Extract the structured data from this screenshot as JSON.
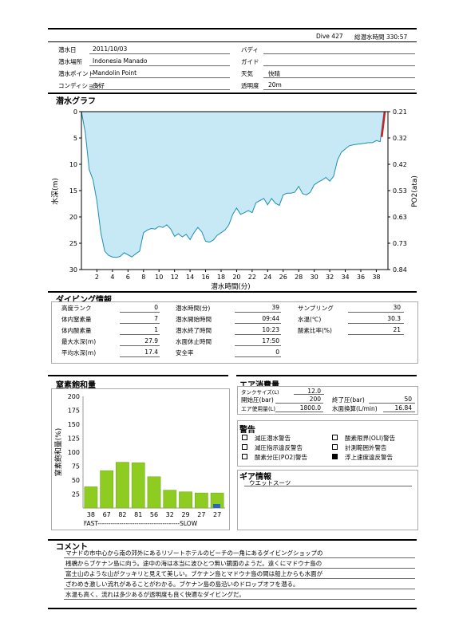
{
  "header": {
    "dive_label": "Dive 427",
    "total_time_label": "総潜水時間 330:57",
    "fields": [
      {
        "label": "潜水日",
        "value": "2011/10/03"
      },
      {
        "label": "潜水場所",
        "value": "Indonesia Manado"
      },
      {
        "label": "潜水ポイント",
        "value": "Mandolin Point"
      },
      {
        "label": "コンディション",
        "value": "良好"
      }
    ],
    "fields_right": [
      {
        "label": "バディ",
        "value": ""
      },
      {
        "label": "ガイド",
        "value": ""
      },
      {
        "label": "天気",
        "value": "快晴"
      },
      {
        "label": "透明度",
        "value": "20m"
      }
    ]
  },
  "dive_graph": {
    "title": "潜水グラフ",
    "ylabel": "水深(m)",
    "ylabel_right": "PO2(ata)",
    "xlabel": "潜水時間(分)",
    "left_ticks": [
      "0",
      "5",
      "10",
      "15",
      "20",
      "25",
      "30"
    ],
    "right_ticks": [
      "0.21",
      "0.32",
      "0.42",
      "0.53",
      "0.63",
      "0.73",
      "0.84"
    ],
    "x_ticks": [
      "2",
      "4",
      "6",
      "8",
      "10",
      "12",
      "14",
      "16",
      "18",
      "20",
      "22",
      "24",
      "26",
      "28",
      "30",
      "32",
      "34",
      "36",
      "38"
    ]
  },
  "dive_info": {
    "title": "ダイビング情報",
    "col1": [
      {
        "label": "高度ランク",
        "value": "0"
      },
      {
        "label": "体内窒素量",
        "value": "7"
      },
      {
        "label": "体内酸素量",
        "value": "1"
      },
      {
        "label": "最大水深(m)",
        "value": "27.9"
      },
      {
        "label": "平均水深(m)",
        "value": "17.4"
      }
    ],
    "col2": [
      {
        "label": "潜水時間(分)",
        "value": "39"
      },
      {
        "label": "潜水開始時間",
        "value": "09:44"
      },
      {
        "label": "潜水終了時間",
        "value": "10:23"
      },
      {
        "label": "水面休止時間",
        "value": "17:50"
      },
      {
        "label": "安全率",
        "value": "0"
      }
    ],
    "col3": [
      {
        "label": "サンプリング",
        "value": "30"
      },
      {
        "label": "水温(℃)",
        "value": "30.3"
      },
      {
        "label": "酸素比率(%)",
        "value": "21"
      }
    ]
  },
  "nitrogen": {
    "title": "窒素飽和量",
    "ylabel": "窒素飽和量(%)",
    "fast_slow": "FAST--------------------------------------SLOW"
  },
  "chart_data": [
    {
      "type": "area",
      "title": "潜水グラフ",
      "xlabel": "潜水時間(分)",
      "ylabel": "水深(m)",
      "ylabel_right": "PO2(ata)",
      "xlim": [
        0,
        39.5
      ],
      "ylim": [
        30,
        0
      ],
      "ylim_right": [
        0.84,
        0.21
      ],
      "x_ticks": [
        2,
        4,
        6,
        8,
        10,
        12,
        14,
        16,
        18,
        20,
        22,
        24,
        26,
        28,
        30,
        32,
        34,
        36,
        38
      ],
      "fill_color": "#c6e9f5",
      "line_color": "#1c8fb0",
      "po2_color": "#cc2222",
      "series": [
        {
          "name": "",
          "x": [
            0,
            0.5,
            1,
            1.5,
            2,
            2.5,
            3,
            3.5,
            4,
            4.5,
            5,
            5.5,
            6,
            6.5,
            7,
            7.5,
            8,
            8.5,
            9,
            9.5,
            10,
            10.5,
            11,
            11.5,
            12,
            12.5,
            13,
            13.5,
            14,
            14.5,
            15,
            15.5,
            16,
            16.5,
            17,
            17.5,
            18,
            18.5,
            19,
            19.5,
            20,
            20.5,
            21,
            21.5,
            22,
            22.5,
            23,
            23.5,
            24,
            24.5,
            25,
            25.5,
            26,
            26.5,
            27,
            27.5,
            28,
            28.5,
            29,
            29.5,
            30,
            30.5,
            31,
            31.5,
            32,
            32.5,
            33,
            33.5,
            34,
            34.5,
            35,
            35.5,
            36,
            36.5,
            37,
            37.5,
            38,
            38.5,
            39
          ],
          "y": [
            0,
            4,
            11,
            13,
            17,
            23,
            26.5,
            27.3,
            27.6,
            27.7,
            27.5,
            26.8,
            27.2,
            27.6,
            27,
            26.5,
            23,
            22.5,
            22.2,
            22.3,
            21.8,
            22,
            21.5,
            22.3,
            23.7,
            23.2,
            23.8,
            23.3,
            24.3,
            23,
            22,
            22.8,
            24.6,
            24.8,
            24.4,
            23.5,
            23,
            22.5,
            21.5,
            19.5,
            18.3,
            19.5,
            19.2,
            18.8,
            19.2,
            17.3,
            16.9,
            16.5,
            17.7,
            16.5,
            17.4,
            17.8,
            15.8,
            15.5,
            15.5,
            15.3,
            14.2,
            15.6,
            15.8,
            15.3,
            13.9,
            13.4,
            13,
            12.5,
            13.2,
            12.3,
            9.2,
            7.7,
            7.1,
            6.5,
            6.3,
            6.2,
            6.1,
            6.0,
            5.9,
            5.9,
            5.5,
            5.7,
            0
          ]
        },
        {
          "name": "PO2",
          "x": [
            38.7,
            39.1
          ],
          "y": [
            4.8,
            0
          ]
        }
      ]
    },
    {
      "type": "bar",
      "title": "窒素飽和量",
      "ylabel": "窒素飽和量(%)",
      "ylim": [
        0,
        200
      ],
      "y_ticks": [
        25,
        50,
        75,
        100,
        125,
        150,
        175,
        200
      ],
      "categories": [
        "38",
        "67",
        "82",
        "81",
        "56",
        "32",
        "29",
        "27",
        "27"
      ],
      "values": [
        38,
        67,
        82,
        81,
        56,
        32,
        29,
        27,
        27
      ],
      "bar_color": "#8fcc22"
    }
  ],
  "air": {
    "title": "エア消費量",
    "tank_label": "タンクサイズ(L)",
    "tank_value": "12.0",
    "rows": [
      {
        "l1": "開始圧(bar)",
        "v1": "200",
        "l2": "終了圧(bar)",
        "v2": "50"
      },
      {
        "l1": "エア使用量(L)",
        "v1": "1800.0",
        "l2": "水面換算(L/min)",
        "v2": "16.84"
      }
    ]
  },
  "warnings": {
    "title": "警告",
    "items": [
      {
        "label": "減圧潜水警告",
        "checked": false
      },
      {
        "label": "酸素限界(OLI)警告",
        "checked": false
      },
      {
        "label": "減圧指示違反警告",
        "checked": false
      },
      {
        "label": "計測範囲外警告",
        "checked": false
      },
      {
        "label": "酸素分圧(PO2)警告",
        "checked": false
      },
      {
        "label": "浮上速度違反警告",
        "checked": true
      }
    ]
  },
  "gear": {
    "title": "ギア情報",
    "value": "ウエットスーツ"
  },
  "comment": {
    "title": "コメント",
    "lines": [
      "マナドの市中心から南の郊外にあるリゾートホテルのビーチの一角にあるダイビングショップの",
      "桟橋からブケナン島に向う。途中の海は本当に波ひとつ無い鏡面のようだ。遠くにマドウナ島の",
      "富士山のような山がクッキリと見えて美しい。ブケナン島とマドウナ島の間は船上からも水面が",
      "ざわめき激しい流れがあることがわかる。ブケナン島の島沿いのドロップオフを潜る。",
      "水温も高く、流れは多少あるが透明度も良く快適なダイビングだ。"
    ]
  }
}
